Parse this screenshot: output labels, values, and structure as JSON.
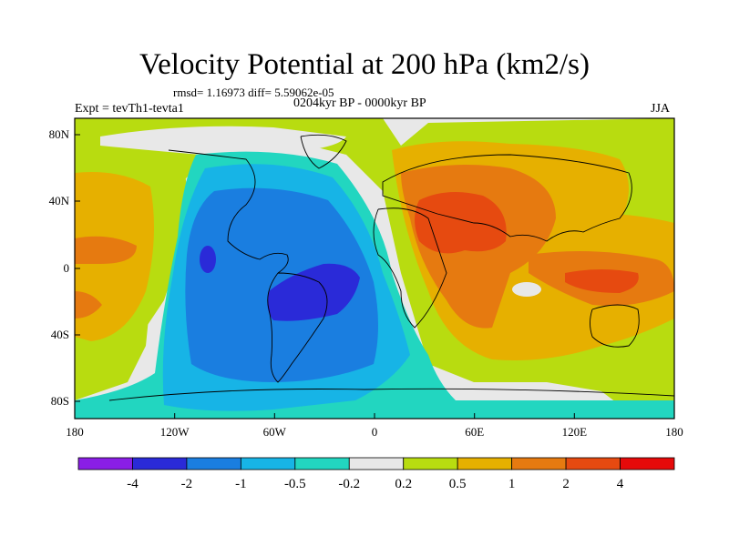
{
  "plot": {
    "title": "Velocity Potential at 200 hPa (km2/s)",
    "stats": "rmsd= 1.16973  diff= 5.59062e-05",
    "period": "0204kyr BP - 0000kyr BP",
    "experiment": "Expt = tevTh1-tevta1",
    "season": "JJA"
  },
  "map_data": {
    "type": "filled-contour-map",
    "projection": "cylindrical-equidistant",
    "lon_range": [
      -180,
      180
    ],
    "lat_range": [
      -90,
      90
    ],
    "x_ticks": [
      "180",
      "120W",
      "60W",
      "0",
      "60E",
      "120E",
      "180"
    ],
    "y_ticks": [
      "80N",
      "40N",
      "0",
      "40S",
      "80S"
    ],
    "fields": {
      "background": "#eaeaea",
      "land_outline_color": "#000000"
    }
  },
  "colorbar": {
    "labels": [
      "-4",
      "-2",
      "-1",
      "-0.5",
      "-0.2",
      "0.2",
      "0.5",
      "1",
      "2",
      "4"
    ],
    "colors": [
      "#8a1ee6",
      "#2a2ad8",
      "#1a7ee0",
      "#17b4e6",
      "#22d6c0",
      "#e8e8e8",
      "#b8dc10",
      "#e6b000",
      "#e67a10",
      "#e64a10",
      "#e60a0a"
    ]
  }
}
